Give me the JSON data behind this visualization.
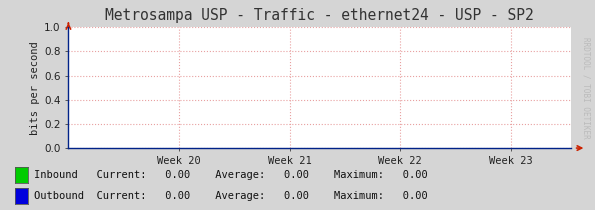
{
  "title": "Metrosampa USP - Traffic - ethernet24 - USP - SP2",
  "ylabel": "bits per second",
  "xlabel_ticks": [
    "Week 20",
    "Week 21",
    "Week 22",
    "Week 23"
  ],
  "xlabel_tick_positions": [
    0.22,
    0.44,
    0.66,
    0.88
  ],
  "ylim": [
    0.0,
    1.0
  ],
  "yticks": [
    0.0,
    0.2,
    0.4,
    0.6,
    0.8,
    1.0
  ],
  "background_color": "#d5d5d5",
  "plot_bg_color": "#ffffff",
  "grid_color": "#e8a0a0",
  "grid_style": ":",
  "axis_color": "#002288",
  "arrow_color": "#cc2200",
  "title_color": "#333333",
  "legend": [
    {
      "label": "Inbound",
      "color": "#00cc00"
    },
    {
      "label": "Outbound",
      "color": "#0000dd"
    }
  ],
  "legend_stats": [
    {
      "current": "0.00",
      "average": "0.00",
      "maximum": "0.00"
    },
    {
      "current": "0.00",
      "average": "0.00",
      "maximum": "0.00"
    }
  ],
  "watermark": "RRDTOOL / TOBI OETIKER",
  "font_family": "monospace",
  "title_fontsize": 10.5,
  "tick_fontsize": 7.5,
  "legend_fontsize": 7.5,
  "watermark_fontsize": 5.5
}
